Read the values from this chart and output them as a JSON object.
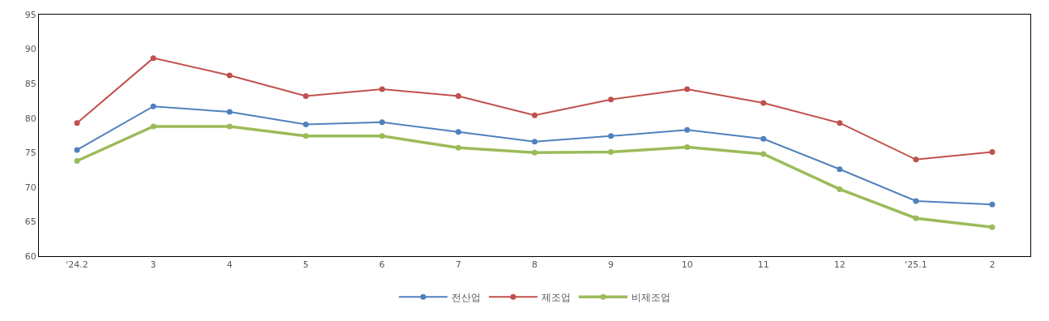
{
  "chart_data": {
    "type": "line",
    "categories": [
      "'24.2",
      "3",
      "4",
      "5",
      "6",
      "7",
      "8",
      "9",
      "10",
      "11",
      "12",
      "'25.1",
      "2"
    ],
    "series": [
      {
        "name": "전산업",
        "color": "#4f81bd",
        "values": [
          75.4,
          81.7,
          80.9,
          79.1,
          79.4,
          78.0,
          76.6,
          77.4,
          78.3,
          77.0,
          72.6,
          68.0,
          67.5
        ]
      },
      {
        "name": "제조업",
        "color": "#c0504d",
        "values": [
          79.3,
          88.7,
          86.2,
          83.2,
          84.2,
          83.2,
          80.4,
          82.7,
          84.2,
          82.2,
          79.3,
          74.0,
          75.1
        ]
      },
      {
        "name": "비제조업",
        "color": "#9bbb59",
        "values": [
          73.8,
          78.8,
          78.8,
          77.4,
          77.4,
          75.7,
          75.0,
          75.1,
          75.8,
          74.8,
          69.7,
          65.5,
          64.2
        ]
      }
    ],
    "ylim": [
      60,
      95
    ],
    "yticks": [
      60,
      65,
      70,
      75,
      80,
      85,
      90,
      95
    ],
    "legend": "bottom",
    "marker": "circle",
    "line_style": "solid"
  }
}
